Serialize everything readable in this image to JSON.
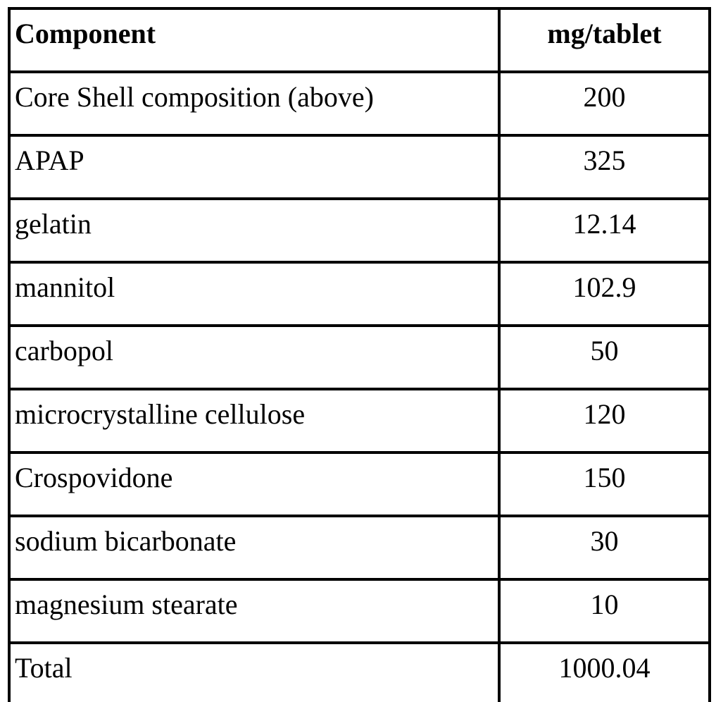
{
  "table": {
    "columns": [
      {
        "label": "Component"
      },
      {
        "label": "mg/tablet"
      }
    ],
    "rows": [
      {
        "component": "Core Shell composition (above)",
        "mg_per_tablet": "200"
      },
      {
        "component": "APAP",
        "mg_per_tablet": "325"
      },
      {
        "component": "gelatin",
        "mg_per_tablet": "12.14"
      },
      {
        "component": "mannitol",
        "mg_per_tablet": "102.9"
      },
      {
        "component": "carbopol",
        "mg_per_tablet": "50"
      },
      {
        "component": "microcrystalline cellulose",
        "mg_per_tablet": "120"
      },
      {
        "component": "Crospovidone",
        "mg_per_tablet": "150"
      },
      {
        "component": "sodium bicarbonate",
        "mg_per_tablet": "30"
      },
      {
        "component": "magnesium stearate",
        "mg_per_tablet": "10"
      },
      {
        "component": "Total",
        "mg_per_tablet": "1000.04"
      }
    ]
  },
  "colors": {
    "border": "#000000",
    "text": "#000000",
    "background": "#ffffff"
  },
  "chart_data": {
    "type": "table",
    "title": "",
    "columns": [
      "Component",
      "mg/tablet"
    ],
    "categories": [
      "Core Shell composition (above)",
      "APAP",
      "gelatin",
      "mannitol",
      "carbopol",
      "microcrystalline cellulose",
      "Crospovidone",
      "sodium bicarbonate",
      "magnesium stearate",
      "Total"
    ],
    "values": [
      200,
      325,
      12.14,
      102.9,
      50,
      120,
      150,
      30,
      10,
      1000.04
    ]
  }
}
